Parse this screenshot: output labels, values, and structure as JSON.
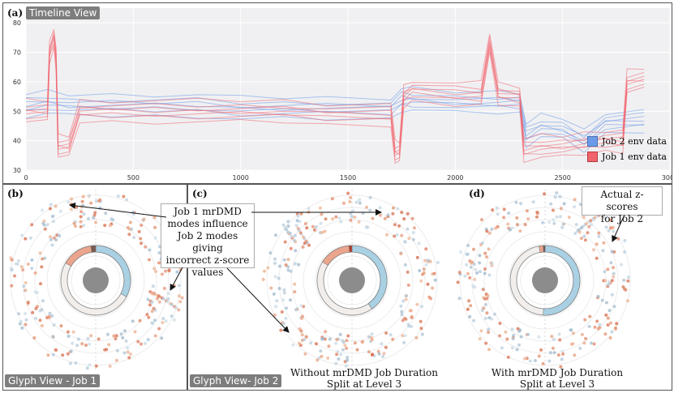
{
  "timeline": {
    "letter": "(a)",
    "tag": "Timeline View",
    "legend": [
      {
        "label": "Job 2 env data",
        "color": "#6b9be8"
      },
      {
        "label": "Job 1 env data",
        "color": "#f0646e"
      }
    ],
    "y_ticks": [
      "30",
      "40",
      "50",
      "60",
      "70",
      "80"
    ],
    "x_ticks": [
      "0",
      "500",
      "1000",
      "1500",
      "2000",
      "2500",
      "3000"
    ]
  },
  "chart_data": {
    "type": "line",
    "xlim": [
      0,
      3000
    ],
    "ylim": [
      30,
      85
    ],
    "series": [
      {
        "name": "Job 2 env data",
        "color": "#6b9be8",
        "x": [
          0,
          100,
          200,
          400,
          600,
          800,
          1000,
          1200,
          1400,
          1700,
          1750,
          1800,
          2000,
          2200,
          2300,
          2330,
          2400,
          2500,
          2600,
          2700,
          2880
        ],
        "y": [
          52,
          53,
          52,
          52,
          52,
          52,
          51,
          51,
          51,
          51,
          54,
          54,
          53,
          53,
          53,
          42,
          45,
          44,
          40,
          46,
          47
        ]
      },
      {
        "name": "Job 1 env data",
        "color": "#f0646e",
        "x": [
          0,
          100,
          110,
          130,
          140,
          150,
          200,
          250,
          400,
          600,
          800,
          1000,
          1200,
          1400,
          1700,
          1720,
          1740,
          1760,
          1800,
          2000,
          2120,
          2160,
          2200,
          2300,
          2320,
          2400,
          2500,
          2600,
          2700,
          2780,
          2800,
          2880
        ],
        "y": [
          50,
          50,
          70,
          75,
          68,
          38,
          38,
          50,
          50,
          50,
          50,
          50,
          50,
          49,
          49,
          36,
          36,
          55,
          57,
          56,
          56,
          73,
          56,
          55,
          37,
          38,
          38,
          39,
          40,
          40,
          60,
          61
        ]
      }
    ]
  },
  "glyph_b": {
    "letter": "(b)",
    "tag": "Glyph View - Job 1"
  },
  "glyph_c": {
    "letter": "(c)",
    "tag": "Glyph View- Job 2",
    "caption_line1": "Without mrDMD Job Duration",
    "caption_line2": "Split at  Level 3"
  },
  "glyph_d": {
    "letter": "(d)",
    "caption_line1": "With mrDMD Job Duration",
    "caption_line2": "Split at  Level 3"
  },
  "callouts": {
    "influence": [
      "Job 1 mrDMD",
      "modes influence",
      "Job 2 modes giving",
      "incorrect z-score",
      "values"
    ],
    "actual": [
      "Actual z-scores",
      "for Job 2"
    ]
  }
}
